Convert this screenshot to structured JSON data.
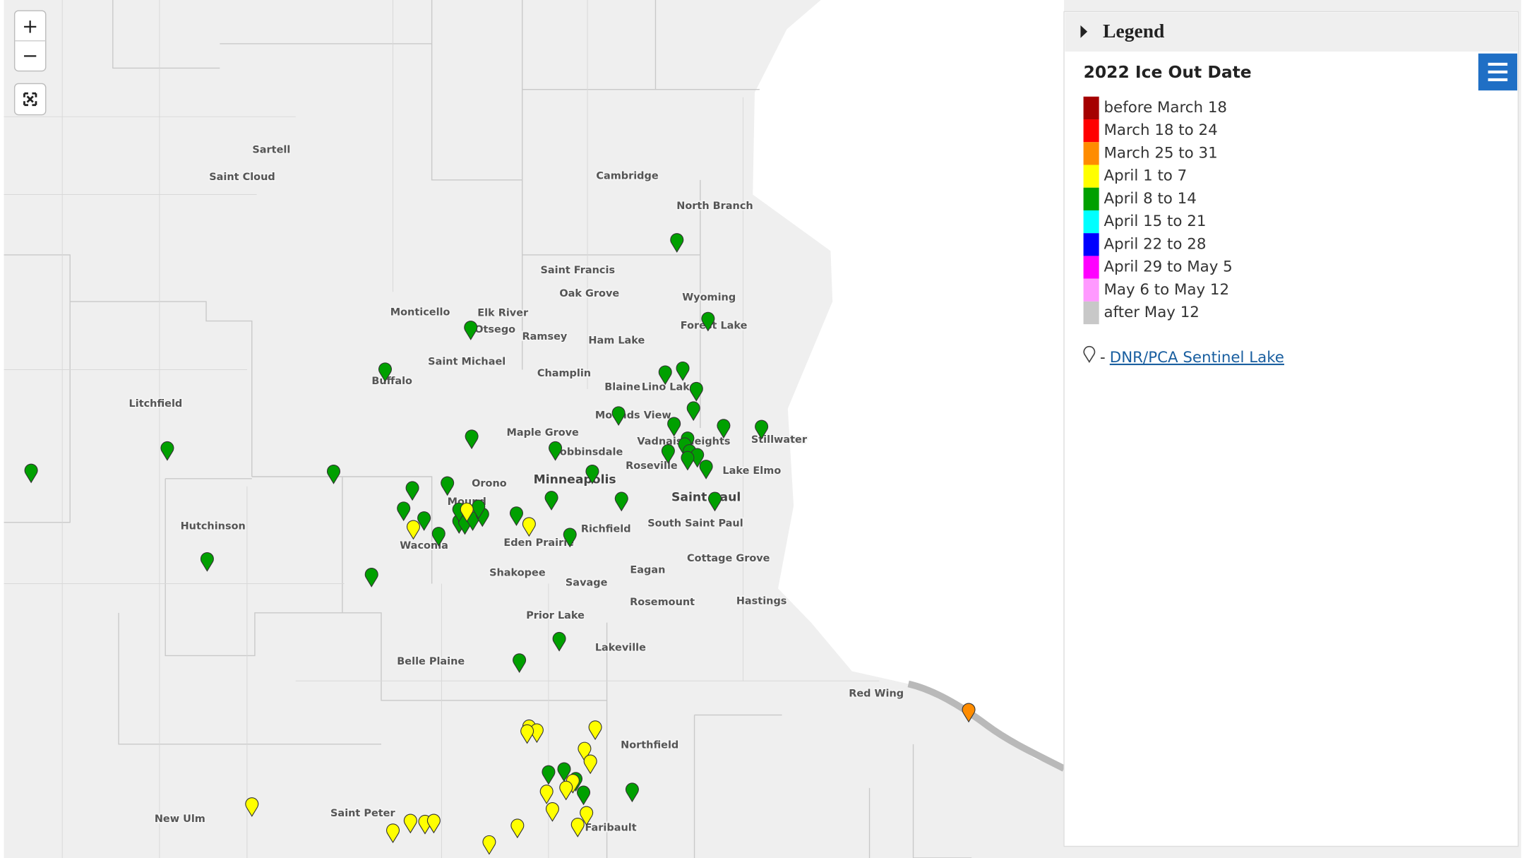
{
  "map": {
    "controls": {
      "zoom_in": "+",
      "zoom_out": "−"
    },
    "places": [
      "Sartell",
      "Saint Cloud",
      "Cambridge",
      "North Branch",
      "Saint Francis",
      "Oak Grove",
      "Wyoming",
      "Forest Lake",
      "Monticello",
      "Elk River",
      "Otsego",
      "Ramsey",
      "Ham Lake",
      "Saint Michael",
      "Champlin",
      "Buffalo",
      "Blaine",
      "Lino Lakes",
      "Litchfield",
      "Mounds View",
      "Maple Grove",
      "Vadnais Heights",
      "Stillwater",
      "Robbinsdale",
      "Roseville",
      "Lake Elmo",
      "Minneapolis",
      "Orono",
      "Saint Paul",
      "Mound",
      "Hutchinson",
      "South Saint Paul",
      "Richfield",
      "Waconia",
      "Eden Prairie",
      "Cottage Grove",
      "Eagan",
      "Shakopee",
      "Savage",
      "Rosemount",
      "Hastings",
      "Prior Lake",
      "Lakeville",
      "Belle Plaine",
      "Red Wing",
      "Northfield",
      "Saint Peter",
      "New Ulm",
      "Faribault"
    ]
  },
  "legend": {
    "header": "Legend",
    "title": "2022 Ice Out Date",
    "items": [
      {
        "label": "before March 18",
        "color": "#a50000"
      },
      {
        "label": "March 18 to 24",
        "color": "#ff0000"
      },
      {
        "label": "March 25 to 31",
        "color": "#ff8c00"
      },
      {
        "label": "April 1 to 7",
        "color": "#ffff00"
      },
      {
        "label": "April 8 to 14",
        "color": "#00a000"
      },
      {
        "label": "April 15 to 21",
        "color": "#00ffff"
      },
      {
        "label": "April 22 to 28",
        "color": "#0000ff"
      },
      {
        "label": "April 29 to May 5",
        "color": "#ff00ff"
      },
      {
        "label": "May 6 to May 12",
        "color": "#ff99ff"
      },
      {
        "label": "after May 12",
        "color": "#c8c8c8"
      }
    ],
    "sentinel_separator": "-",
    "sentinel_link": "DNR/PCA Sentinel Lake"
  }
}
